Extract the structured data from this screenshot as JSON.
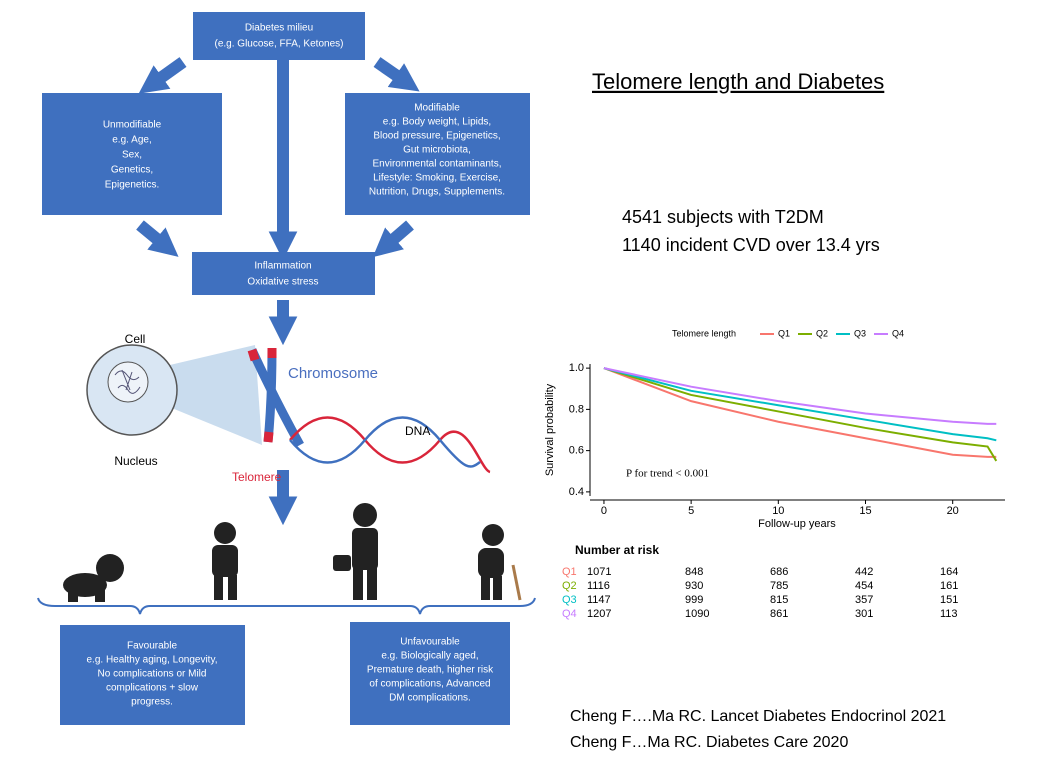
{
  "title": "Telomere length and Diabetes",
  "stats": [
    "4541 subjects with T2DM",
    "1140 incident CVD over 13.4 yrs"
  ],
  "diagram": {
    "milieu": [
      "Diabetes milieu",
      "(e.g. Glucose, FFA, Ketones)"
    ],
    "unmodifiable": [
      "Unmodifiable",
      "e.g. Age,",
      "Sex,",
      "Genetics,",
      "Epigenetics."
    ],
    "modifiable": [
      "Modifiable",
      "e.g. Body weight, Lipids,",
      "Blood pressure, Epigenetics,",
      "Gut microbiota,",
      "Environmental contaminants,",
      "Lifestyle: Smoking, Exercise,",
      "Nutrition, Drugs, Supplements."
    ],
    "stress": [
      "Inflammation",
      "Oxidative stress"
    ],
    "cell": "Cell",
    "nucleus": "Nucleus",
    "chromosome": "Chromosome",
    "dna": "DNA",
    "telomere": "Telomere",
    "favourable": [
      "Favourable",
      "e.g. Healthy aging, Longevity,",
      "No complications or Mild",
      "complications + slow",
      "progress."
    ],
    "unfavourable": [
      "Unfavourable",
      "e.g. Biologically aged,",
      "Premature death, higher risk",
      "of complications, Advanced",
      "DM complications."
    ]
  },
  "chart_data": {
    "type": "line",
    "legend_title": "Telomere length",
    "y_label": "Survival probability",
    "x_label": "Follow-up years",
    "annotation": "P for trend < 0.001",
    "x": [
      0,
      5,
      10,
      15,
      20,
      22,
      22.5
    ],
    "series": [
      {
        "name": "Q1",
        "color": "#f8766d",
        "values": [
          1,
          0.84,
          0.74,
          0.66,
          0.58,
          0.57,
          0.57
        ]
      },
      {
        "name": "Q2",
        "color": "#7cae00",
        "values": [
          1,
          0.87,
          0.79,
          0.71,
          0.64,
          0.62,
          0.55
        ]
      },
      {
        "name": "Q3",
        "color": "#00bfc4",
        "values": [
          1,
          0.89,
          0.82,
          0.75,
          0.68,
          0.66,
          0.65
        ]
      },
      {
        "name": "Q4",
        "color": "#c77cff",
        "values": [
          1,
          0.91,
          0.84,
          0.78,
          0.74,
          0.73,
          0.73
        ]
      }
    ],
    "xlim": [
      -0.8,
      23
    ],
    "xticks": [
      0,
      5,
      10,
      15,
      20
    ],
    "ylim": [
      0.38,
      1.02
    ],
    "yticks": [
      0.4,
      0.6,
      0.8,
      {
        "value": 1,
        "label": "1.0"
      }
    ]
  },
  "risk_table": {
    "title": "Number at risk",
    "rows": [
      {
        "label": "Q1",
        "color": "#f8766d",
        "values": [
          1071,
          848,
          686,
          442,
          164
        ]
      },
      {
        "label": "Q2",
        "color": "#7cae00",
        "values": [
          1116,
          930,
          785,
          454,
          161
        ]
      },
      {
        "label": "Q3",
        "color": "#00bfc4",
        "values": [
          1147,
          999,
          815,
          357,
          151
        ]
      },
      {
        "label": "Q4",
        "color": "#c77cff",
        "values": [
          1207,
          1090,
          861,
          301,
          113
        ]
      }
    ]
  },
  "references": [
    "Cheng F….Ma RC. Lancet Diabetes Endocrinol 2021",
    "Cheng F…Ma RC. Diabetes Care 2020"
  ]
}
